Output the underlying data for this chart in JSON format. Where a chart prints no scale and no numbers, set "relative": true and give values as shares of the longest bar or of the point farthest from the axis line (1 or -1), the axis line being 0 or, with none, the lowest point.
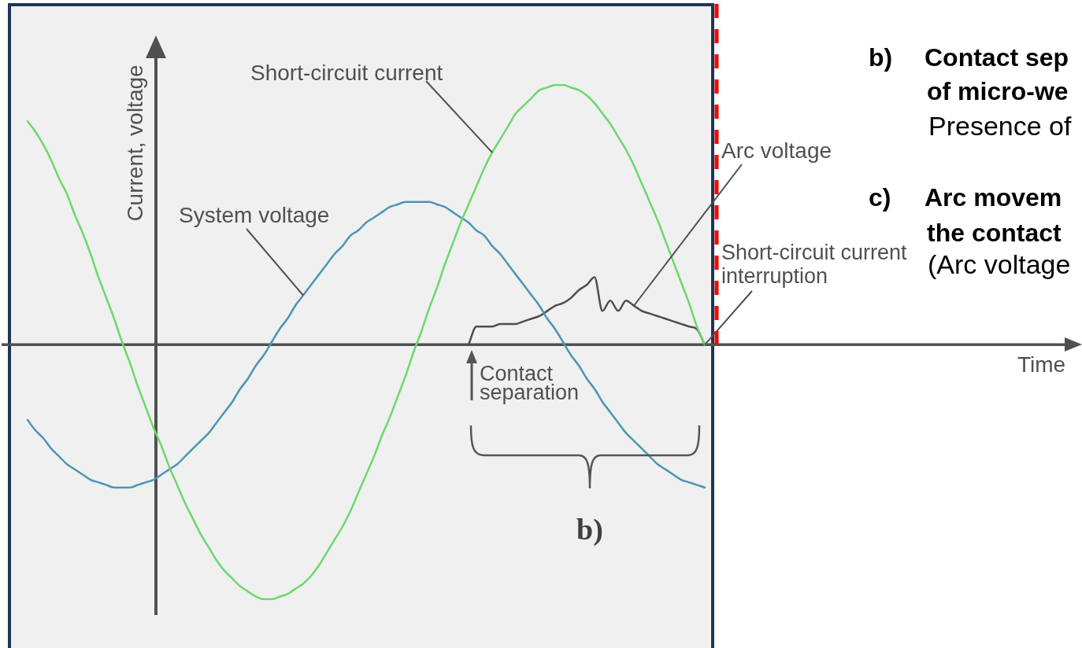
{
  "chart_data": {
    "type": "line",
    "relative": true,
    "xlabel": "Time",
    "ylabel": "Current, voltage",
    "categories": [
      null,
      null,
      null,
      null,
      null,
      null,
      null,
      null,
      null,
      null,
      null,
      null,
      null,
      null,
      null,
      null,
      null,
      null,
      null,
      null,
      null,
      null,
      null,
      null,
      null,
      null,
      null,
      null,
      null,
      null,
      null,
      null,
      null,
      null,
      null,
      null,
      null,
      null,
      null,
      null,
      null,
      null,
      null,
      null,
      null,
      null,
      null,
      null,
      null,
      null,
      null,
      null,
      null,
      null,
      null,
      null,
      null,
      null,
      null,
      null,
      null,
      null,
      null,
      null,
      null,
      null,
      null,
      null,
      null,
      null,
      null,
      null,
      null,
      null,
      null,
      null,
      null,
      null,
      null,
      null,
      null,
      null,
      null,
      null,
      null,
      null,
      null,
      null,
      null,
      null,
      null,
      null,
      null,
      null,
      null,
      null,
      null,
      null,
      null,
      null,
      null,
      null,
      null,
      null,
      null,
      null,
      null,
      null,
      null,
      null,
      null,
      null,
      null,
      null,
      null,
      null,
      null,
      null,
      null,
      null,
      null,
      null,
      null,
      null,
      null,
      null,
      null,
      null,
      null,
      null,
      null,
      null
    ],
    "series": [
      {
        "name": "Short-circuit current",
        "color": "#6cd86c",
        "values": [
          0.86,
          0.82,
          0.77,
          0.71,
          0.64,
          0.58,
          0.5,
          0.43,
          0.35,
          0.26,
          0.18,
          0.1,
          0.01,
          -0.07,
          -0.16,
          -0.24,
          -0.32,
          -0.39,
          -0.47,
          -0.54,
          -0.61,
          -0.67,
          -0.73,
          -0.78,
          -0.83,
          -0.87,
          -0.9,
          -0.93,
          -0.95,
          -0.97,
          -0.98,
          -0.98,
          -0.97,
          -0.96,
          -0.94,
          -0.92,
          -0.89,
          -0.85,
          -0.8,
          -0.75,
          -0.7,
          -0.64,
          -0.57,
          -0.5,
          -0.43,
          -0.35,
          -0.28,
          -0.2,
          -0.12,
          -0.03,
          0.05,
          0.14,
          0.22,
          0.31,
          0.39,
          0.47,
          0.54,
          0.61,
          0.68,
          0.74,
          0.79,
          0.84,
          0.89,
          0.92,
          0.95,
          0.98,
          0.99,
          1,
          1,
          0.99,
          0.98,
          0.96,
          0.93,
          0.89,
          0.85,
          0.8,
          0.75,
          0.69,
          0.62,
          0.55,
          0.48,
          0.4,
          0.32,
          0.24,
          0.16,
          0.07,
          0,
          null,
          null,
          null,
          null,
          null,
          null,
          null,
          null,
          null,
          null,
          null,
          null,
          null,
          null,
          null,
          null,
          null,
          null,
          null,
          null,
          null,
          null,
          null,
          null,
          null,
          null,
          null,
          null,
          null,
          null,
          null,
          null,
          null,
          null,
          null,
          null,
          null,
          null,
          null,
          null,
          null,
          null,
          null,
          null,
          null
        ]
      },
      {
        "name": "System voltage",
        "color": "#4a96b4",
        "values": [
          -0.29,
          -0.33,
          -0.36,
          -0.4,
          -0.43,
          -0.46,
          -0.48,
          -0.5,
          -0.52,
          -0.53,
          -0.54,
          -0.55,
          -0.55,
          -0.55,
          -0.54,
          -0.53,
          -0.52,
          -0.5,
          -0.48,
          -0.46,
          -0.43,
          -0.4,
          -0.37,
          -0.34,
          -0.3,
          -0.26,
          -0.22,
          -0.17,
          -0.13,
          -0.08,
          -0.04,
          0.01,
          0.06,
          0.1,
          0.15,
          0.19,
          0.23,
          0.27,
          0.31,
          0.35,
          0.38,
          0.42,
          0.44,
          0.47,
          0.49,
          0.51,
          0.53,
          0.54,
          0.55,
          0.55,
          0.55,
          0.55,
          0.54,
          0.53,
          0.51,
          0.49,
          0.47,
          0.44,
          0.42,
          0.38,
          0.35,
          0.31,
          0.27,
          0.23,
          0.19,
          0.15,
          0.1,
          0.06,
          0.01,
          -0.04,
          -0.08,
          -0.13,
          -0.17,
          -0.22,
          -0.26,
          -0.3,
          -0.34,
          -0.37,
          -0.4,
          -0.43,
          -0.46,
          -0.48,
          -0.5,
          -0.52,
          -0.53,
          -0.54,
          -0.55,
          null,
          null,
          null,
          null,
          null,
          null,
          null,
          null,
          null,
          null,
          null,
          null,
          null,
          null,
          null,
          null,
          null,
          null,
          null,
          null,
          null,
          null,
          null,
          null,
          null,
          null,
          null,
          null,
          null,
          null,
          null,
          null,
          null,
          null,
          null,
          null,
          null,
          null,
          null,
          null,
          null,
          null,
          null,
          null,
          null
        ]
      },
      {
        "name": "Arc voltage",
        "color": "#4d4d4d",
        "values": [
          null,
          null,
          null,
          null,
          null,
          null,
          null,
          null,
          null,
          null,
          null,
          null,
          null,
          null,
          null,
          null,
          null,
          null,
          null,
          null,
          null,
          null,
          null,
          null,
          null,
          null,
          null,
          null,
          null,
          null,
          null,
          null,
          null,
          null,
          null,
          null,
          null,
          null,
          null,
          null,
          null,
          null,
          null,
          null,
          null,
          null,
          null,
          null,
          null,
          null,
          null,
          null,
          null,
          null,
          null,
          null,
          0,
          0.07,
          0.07,
          0.07,
          0.08,
          0.08,
          0.08,
          0.09,
          0.1,
          0.11,
          0.13,
          0.15,
          0.16,
          0.18,
          0.21,
          0.23,
          0.26,
          0.13,
          0.17,
          0.13,
          0.17,
          0.15,
          0.13,
          0.12,
          0.11,
          0.1,
          0.09,
          0.08,
          0.07,
          0.06,
          0,
          null,
          null,
          null,
          null,
          null,
          null,
          null,
          null,
          null,
          null,
          null,
          null,
          null,
          null,
          null,
          null,
          null,
          null,
          null,
          null,
          null,
          null,
          null,
          null,
          null,
          null,
          null,
          null,
          null,
          null,
          null,
          null,
          null,
          null,
          null,
          null,
          null,
          null,
          null,
          null,
          null,
          null,
          null,
          null,
          null
        ]
      }
    ],
    "annotations": [
      "Contact separation",
      "Short-circuit current interruption",
      "b)",
      "b)",
      "Contact sep",
      "of micro-we",
      "Presence of",
      "c)",
      "Arc movem",
      "the contact",
      "(Arc voltage"
    ]
  }
}
